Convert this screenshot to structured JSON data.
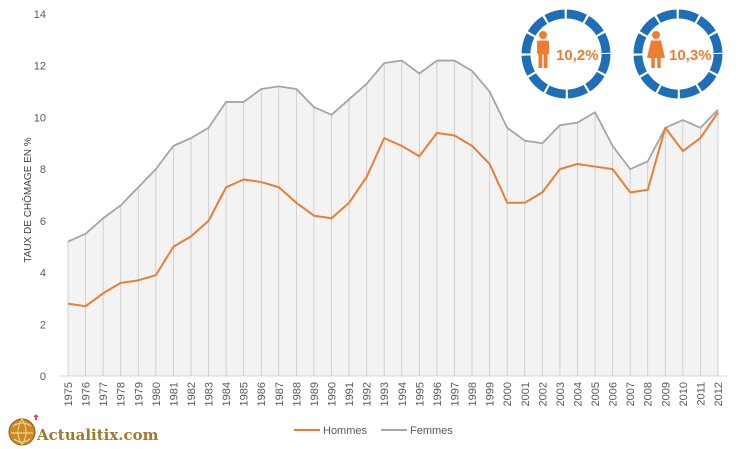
{
  "chart_data": {
    "type": "area",
    "title": "",
    "xlabel": "",
    "ylabel": "TAUX DE CHÔMAGE EN %",
    "ylim": [
      0,
      14
    ],
    "yticks": [
      "0",
      "2",
      "4",
      "6",
      "8",
      "10",
      "12",
      "14"
    ],
    "grid": false,
    "legend_position": "bottom",
    "categories": [
      "1975",
      "1976",
      "1977",
      "1978",
      "1979",
      "1980",
      "1981",
      "1982",
      "1983",
      "1984",
      "1985",
      "1986",
      "1987",
      "1988",
      "1989",
      "1990",
      "1991",
      "1992",
      "1993",
      "1994",
      "1995",
      "1996",
      "1997",
      "1998",
      "1999",
      "2000",
      "2001",
      "2002",
      "2003",
      "2004",
      "2005",
      "2006",
      "2007",
      "2008",
      "2009",
      "2010",
      "2011",
      "2012"
    ],
    "series": [
      {
        "name": "Hommes",
        "color": "#ED7D31",
        "values": [
          2.8,
          2.7,
          3.2,
          3.6,
          3.7,
          3.9,
          5.0,
          5.4,
          6.0,
          7.3,
          7.6,
          7.5,
          7.3,
          6.7,
          6.2,
          6.1,
          6.7,
          7.7,
          9.2,
          8.9,
          8.5,
          9.4,
          9.3,
          8.9,
          8.2,
          6.7,
          6.7,
          7.1,
          8.0,
          8.2,
          8.1,
          8.0,
          7.1,
          7.2,
          9.6,
          8.7,
          9.2,
          10.2
        ]
      },
      {
        "name": "Femmes",
        "color": "#A5A5A5",
        "values": [
          5.2,
          5.5,
          6.1,
          6.6,
          7.3,
          8.0,
          8.9,
          9.2,
          9.6,
          10.6,
          10.6,
          11.1,
          11.2,
          11.1,
          10.4,
          10.1,
          10.7,
          11.3,
          12.1,
          12.2,
          11.7,
          12.2,
          12.2,
          11.8,
          11.0,
          9.6,
          9.1,
          9.0,
          9.7,
          9.8,
          10.2,
          8.9,
          8.0,
          8.3,
          9.6,
          9.9,
          9.6,
          10.3
        ]
      }
    ]
  },
  "badges": {
    "male_icon": "male-person-icon",
    "male_value": "10,2%",
    "female_icon": "female-person-icon",
    "female_value": "10,3%",
    "ring_color": "#1F6FB8",
    "icon_color": "#ED7D31"
  },
  "logo": {
    "text": "Actualitix.com",
    "icon": "globe-icon"
  }
}
